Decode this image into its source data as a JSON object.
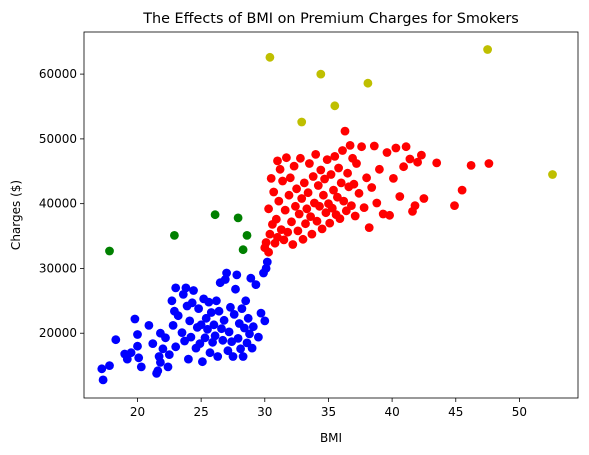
{
  "chart_data": {
    "type": "scatter",
    "title": "The Effects of BMI on Premium Charges for Smokers",
    "xlabel": "BMI",
    "ylabel": "Charges ($)",
    "xlim": [
      15.8,
      54.6
    ],
    "ylim": [
      10000,
      66500
    ],
    "xticks": [
      20,
      25,
      30,
      35,
      40,
      45,
      50
    ],
    "yticks": [
      20000,
      30000,
      40000,
      50000,
      60000
    ],
    "ytick_labels": [
      "20000",
      "30000",
      "40000",
      "50000",
      "60000"
    ],
    "grid": false,
    "legend": "none",
    "series": [
      {
        "color": "#0000ff",
        "points": [
          [
            17.2,
            14500
          ],
          [
            17.3,
            12800
          ],
          [
            17.8,
            15000
          ],
          [
            18.3,
            19000
          ],
          [
            19.0,
            16800
          ],
          [
            19.2,
            16000
          ],
          [
            19.5,
            17000
          ],
          [
            19.8,
            22200
          ],
          [
            20.0,
            18000
          ],
          [
            20.0,
            19800
          ],
          [
            20.1,
            16200
          ],
          [
            20.3,
            14800
          ],
          [
            20.9,
            21200
          ],
          [
            21.2,
            18400
          ],
          [
            21.5,
            13800
          ],
          [
            21.6,
            14200
          ],
          [
            21.7,
            16400
          ],
          [
            21.8,
            20000
          ],
          [
            21.8,
            15500
          ],
          [
            22.0,
            17600
          ],
          [
            22.2,
            19300
          ],
          [
            22.4,
            14800
          ],
          [
            22.5,
            16700
          ],
          [
            22.7,
            25000
          ],
          [
            22.8,
            21200
          ],
          [
            22.9,
            23400
          ],
          [
            23.0,
            27000
          ],
          [
            23.0,
            17900
          ],
          [
            23.2,
            22700
          ],
          [
            23.5,
            20100
          ],
          [
            23.6,
            26000
          ],
          [
            23.7,
            18800
          ],
          [
            23.8,
            27000
          ],
          [
            23.9,
            24200
          ],
          [
            24.0,
            16000
          ],
          [
            24.1,
            21900
          ],
          [
            24.2,
            19400
          ],
          [
            24.3,
            24700
          ],
          [
            24.4,
            26600
          ],
          [
            24.6,
            17700
          ],
          [
            24.7,
            20900
          ],
          [
            24.8,
            23800
          ],
          [
            24.9,
            18400
          ],
          [
            25.0,
            21300
          ],
          [
            25.1,
            15600
          ],
          [
            25.2,
            25300
          ],
          [
            25.3,
            19300
          ],
          [
            25.4,
            22300
          ],
          [
            25.5,
            20600
          ],
          [
            25.6,
            24800
          ],
          [
            25.7,
            17000
          ],
          [
            25.8,
            23200
          ],
          [
            25.9,
            18600
          ],
          [
            26.0,
            21300
          ],
          [
            26.1,
            19600
          ],
          [
            26.2,
            25000
          ],
          [
            26.3,
            16400
          ],
          [
            26.4,
            23400
          ],
          [
            26.5,
            27800
          ],
          [
            26.6,
            20700
          ],
          [
            26.7,
            18900
          ],
          [
            26.8,
            22000
          ],
          [
            26.9,
            28300
          ],
          [
            27.0,
            29300
          ],
          [
            27.1,
            17300
          ],
          [
            27.2,
            20200
          ],
          [
            27.3,
            24000
          ],
          [
            27.4,
            18700
          ],
          [
            27.5,
            16400
          ],
          [
            27.6,
            22900
          ],
          [
            27.7,
            26800
          ],
          [
            27.8,
            29000
          ],
          [
            27.9,
            19200
          ],
          [
            28.0,
            21500
          ],
          [
            28.1,
            17600
          ],
          [
            28.2,
            23800
          ],
          [
            28.3,
            16400
          ],
          [
            28.4,
            20800
          ],
          [
            28.5,
            25000
          ],
          [
            28.6,
            18500
          ],
          [
            28.7,
            22300
          ],
          [
            28.8,
            19900
          ],
          [
            28.9,
            28500
          ],
          [
            29.0,
            17700
          ],
          [
            29.1,
            21000
          ],
          [
            29.3,
            27500
          ],
          [
            29.5,
            19400
          ],
          [
            29.7,
            23100
          ],
          [
            29.9,
            29300
          ],
          [
            30.0,
            21900
          ],
          [
            30.1,
            30000
          ],
          [
            30.2,
            31000
          ]
        ]
      },
      {
        "color": "#ff0000",
        "points": [
          [
            30.0,
            33200
          ],
          [
            30.1,
            34000
          ],
          [
            30.3,
            32500
          ],
          [
            30.3,
            39200
          ],
          [
            30.4,
            35300
          ],
          [
            30.5,
            43900
          ],
          [
            30.6,
            36800
          ],
          [
            30.7,
            41800
          ],
          [
            30.8,
            33900
          ],
          [
            30.9,
            37600
          ],
          [
            31.0,
            46600
          ],
          [
            31.0,
            34800
          ],
          [
            31.1,
            40400
          ],
          [
            31.2,
            45300
          ],
          [
            31.3,
            36000
          ],
          [
            31.4,
            43500
          ],
          [
            31.5,
            34400
          ],
          [
            31.6,
            39000
          ],
          [
            31.7,
            47100
          ],
          [
            31.8,
            35600
          ],
          [
            31.9,
            41300
          ],
          [
            32.0,
            44000
          ],
          [
            32.1,
            37200
          ],
          [
            32.2,
            33700
          ],
          [
            32.3,
            45800
          ],
          [
            32.4,
            39600
          ],
          [
            32.5,
            42300
          ],
          [
            32.6,
            35800
          ],
          [
            32.7,
            38400
          ],
          [
            32.8,
            47000
          ],
          [
            32.9,
            40800
          ],
          [
            33.0,
            34500
          ],
          [
            33.1,
            43200
          ],
          [
            33.2,
            36900
          ],
          [
            33.3,
            39200
          ],
          [
            33.4,
            41700
          ],
          [
            33.5,
            46200
          ],
          [
            33.6,
            38000
          ],
          [
            33.7,
            35300
          ],
          [
            33.8,
            44200
          ],
          [
            33.9,
            40100
          ],
          [
            34.0,
            47600
          ],
          [
            34.1,
            37300
          ],
          [
            34.2,
            42800
          ],
          [
            34.3,
            39600
          ],
          [
            34.4,
            45200
          ],
          [
            34.5,
            36100
          ],
          [
            34.6,
            41300
          ],
          [
            34.7,
            43800
          ],
          [
            34.8,
            38600
          ],
          [
            34.9,
            46800
          ],
          [
            35.0,
            40000
          ],
          [
            35.1,
            37000
          ],
          [
            35.2,
            44500
          ],
          [
            35.3,
            39300
          ],
          [
            35.4,
            42100
          ],
          [
            35.5,
            47300
          ],
          [
            35.6,
            38300
          ],
          [
            35.7,
            41000
          ],
          [
            35.8,
            45500
          ],
          [
            35.9,
            37700
          ],
          [
            36.0,
            43200
          ],
          [
            36.1,
            48200
          ],
          [
            36.2,
            40400
          ],
          [
            36.3,
            51200
          ],
          [
            36.4,
            38900
          ],
          [
            36.5,
            44700
          ],
          [
            36.6,
            42600
          ],
          [
            36.7,
            49000
          ],
          [
            36.8,
            39700
          ],
          [
            36.9,
            47000
          ],
          [
            37.0,
            43000
          ],
          [
            37.1,
            38100
          ],
          [
            37.2,
            46200
          ],
          [
            37.4,
            41600
          ],
          [
            37.6,
            48800
          ],
          [
            37.8,
            39400
          ],
          [
            38.0,
            44000
          ],
          [
            38.2,
            36300
          ],
          [
            38.4,
            42500
          ],
          [
            38.6,
            48900
          ],
          [
            38.8,
            40100
          ],
          [
            39.0,
            45300
          ],
          [
            39.3,
            38400
          ],
          [
            39.6,
            47900
          ],
          [
            39.8,
            38200
          ],
          [
            40.1,
            43900
          ],
          [
            40.3,
            48600
          ],
          [
            40.6,
            41100
          ],
          [
            40.9,
            45700
          ],
          [
            41.1,
            48800
          ],
          [
            41.4,
            46900
          ],
          [
            41.6,
            38800
          ],
          [
            41.8,
            39700
          ],
          [
            42.0,
            46400
          ],
          [
            42.3,
            47500
          ],
          [
            42.5,
            40800
          ],
          [
            43.5,
            46300
          ],
          [
            44.9,
            39700
          ],
          [
            45.5,
            42100
          ],
          [
            46.2,
            45900
          ],
          [
            47.6,
            46200
          ]
        ]
      },
      {
        "color": "#008000",
        "points": [
          [
            17.8,
            32700
          ],
          [
            22.9,
            35100
          ],
          [
            26.1,
            38300
          ],
          [
            27.9,
            37800
          ],
          [
            28.3,
            32900
          ],
          [
            28.6,
            35100
          ]
        ]
      },
      {
        "color": "#bfbf00",
        "points": [
          [
            30.4,
            62600
          ],
          [
            32.9,
            52600
          ],
          [
            34.4,
            60000
          ],
          [
            35.5,
            55100
          ],
          [
            38.1,
            58600
          ],
          [
            47.5,
            63800
          ],
          [
            52.6,
            44500
          ]
        ]
      }
    ]
  }
}
